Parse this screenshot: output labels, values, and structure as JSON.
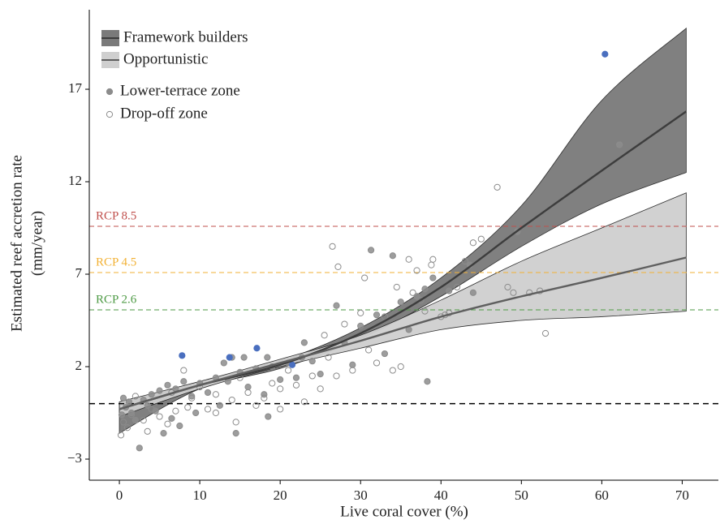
{
  "chart_data": {
    "type": "scatter",
    "xlabel": "Live coral cover (%)",
    "ylabel": [
      "Estimated reef accretion rate",
      "(mm/year)"
    ],
    "xlim": [
      -3.74,
      74.5
    ],
    "ylim": [
      -4.14,
      21.3
    ],
    "xticks": [
      0,
      10,
      20,
      30,
      40,
      50,
      60,
      70
    ],
    "yticks": [
      {
        "value": -3,
        "label": "−3"
      },
      2,
      7,
      12,
      17
    ],
    "baseline": 0,
    "reference_lines": [
      {
        "label": "RCP 8.5",
        "value": 9.59,
        "color": "#c0504d"
      },
      {
        "label": "RCP 4.5",
        "value": 7.09,
        "color": "#f2b134"
      },
      {
        "label": "RCP 2.6",
        "value": 5.07,
        "color": "#4e9a45"
      }
    ],
    "fits": [
      {
        "name": "Framework builders",
        "color": "#3d3d3d",
        "band_color": "#7a7a7a",
        "x": [
          0,
          10,
          20,
          30,
          40,
          50,
          60,
          70.5
        ],
        "values": [
          -0.3,
          1.0,
          2.1,
          3.8,
          6.3,
          9.5,
          12.6,
          15.8
        ],
        "lower": [
          -1.6,
          0.8,
          1.9,
          3.5,
          5.8,
          8.5,
          10.8,
          12.5
        ],
        "upper": [
          0.0,
          1.2,
          2.3,
          4.1,
          6.8,
          10.7,
          16.4,
          20.3
        ]
      },
      {
        "name": "Opportunistic",
        "color": "#5f5f5f",
        "band_color": "#cfcfcf",
        "x": [
          0,
          10,
          20,
          30,
          40,
          50,
          60,
          70.5
        ],
        "values": [
          -0.3,
          1.0,
          2.2,
          3.4,
          4.7,
          5.8,
          6.8,
          7.9
        ],
        "lower": [
          -0.7,
          0.8,
          2.0,
          3.0,
          4.0,
          4.5,
          4.7,
          5.0
        ],
        "upper": [
          0.1,
          1.2,
          2.4,
          3.7,
          5.6,
          7.7,
          9.5,
          11.4
        ]
      }
    ],
    "series": [
      {
        "name": "Lower-terrace zone",
        "color": "#8c8c8c",
        "filled": true,
        "x": [
          0.3,
          0.5,
          0.8,
          1.2,
          1.5,
          2,
          2.5,
          3,
          3.5,
          4,
          4.5,
          5,
          5.5,
          6,
          6.5,
          7,
          7.5,
          8,
          9,
          9.5,
          10,
          11,
          12,
          12.5,
          13,
          13.5,
          14,
          14.5,
          15,
          15.5,
          16,
          17,
          18,
          18.4,
          18.5,
          19,
          20,
          21,
          22,
          22.7,
          23,
          24,
          25,
          27,
          28,
          29,
          30,
          31.3,
          32,
          33,
          34,
          35,
          36,
          37,
          38,
          38.3,
          39,
          41,
          43.6,
          44,
          49.5,
          62.2,
          7.8,
          13.7,
          17.1,
          21.5,
          60.4
        ],
        "values": [
          -0.6,
          0.3,
          -0.2,
          0.1,
          -0.5,
          -0.9,
          -2.4,
          0.2,
          -0.1,
          0.5,
          -0.4,
          0.7,
          -1.6,
          1.0,
          -0.8,
          0.8,
          -1.2,
          1.2,
          0.4,
          -0.5,
          1.1,
          0.6,
          1.4,
          -0.1,
          2.2,
          1.2,
          2.5,
          -1.6,
          1.7,
          2.5,
          0.9,
          1.9,
          0.5,
          2.5,
          -0.7,
          2.0,
          1.3,
          2.2,
          1.4,
          2.5,
          3.3,
          2.3,
          1.6,
          5.3,
          3.3,
          2.1,
          4.2,
          8.3,
          4.8,
          2.7,
          8.0,
          5.5,
          4.0,
          5.8,
          6.2,
          1.2,
          6.8,
          6.1,
          7.5,
          6.0,
          9.3,
          14.0,
          2.6,
          2.5,
          3.0,
          2.1,
          18.9
        ],
        "highlight_color": "#4a6fbf",
        "highlighted": [
          62,
          63,
          64,
          65,
          66
        ]
      },
      {
        "name": "Drop-off zone",
        "color": "#8c8c8c",
        "filled": false,
        "x": [
          0.2,
          0.5,
          1,
          1.5,
          2,
          3,
          3.5,
          4,
          5,
          6,
          6.5,
          7,
          8,
          8.5,
          9,
          10,
          11,
          12,
          12,
          14,
          14.5,
          15,
          16,
          17,
          18,
          19,
          20,
          20,
          21,
          22,
          23,
          24,
          25,
          25.5,
          26,
          26.5,
          27,
          27.2,
          28,
          29,
          30,
          30.5,
          31,
          32,
          33,
          34,
          34.5,
          35,
          36,
          36.5,
          37,
          37.5,
          38,
          38.8,
          39,
          40,
          40.5,
          41,
          42,
          43,
          44,
          45,
          47,
          48.3,
          49,
          51,
          52.3,
          53
        ],
        "values": [
          -1.7,
          -1.0,
          -1.3,
          -0.6,
          0.4,
          -0.9,
          -1.5,
          -0.3,
          -0.7,
          -1.1,
          0.6,
          -0.4,
          1.8,
          -0.2,
          0.3,
          0.9,
          -0.3,
          0.5,
          -0.5,
          0.2,
          -1.0,
          1.4,
          0.6,
          -0.1,
          0.3,
          1.1,
          0.8,
          -0.3,
          1.8,
          1.0,
          0.1,
          1.5,
          0.8,
          3.7,
          2.5,
          8.5,
          1.5,
          7.4,
          4.3,
          1.8,
          4.9,
          6.8,
          2.9,
          2.2,
          4.7,
          1.8,
          6.3,
          2.0,
          7.8,
          6.0,
          7.2,
          5.6,
          5.0,
          7.5,
          7.8,
          4.7,
          4.8,
          4.9,
          6.3,
          7.7,
          8.7,
          8.9,
          11.7,
          6.3,
          6.0,
          6.0,
          6.1,
          3.8
        ]
      }
    ]
  }
}
